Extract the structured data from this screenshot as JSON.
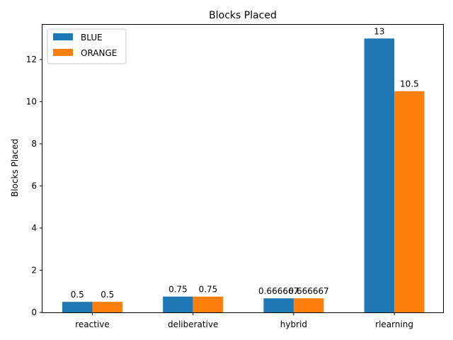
{
  "chart_data": {
    "type": "bar",
    "title": "Blocks Placed",
    "xlabel": "",
    "ylabel": "Blocks Placed",
    "categories": [
      "reactive",
      "deliberative",
      "hybrid",
      "rlearning"
    ],
    "series": [
      {
        "name": "BLUE",
        "color": "#1f77b4",
        "values": [
          0.5,
          0.75,
          0.666667,
          13
        ],
        "labels": [
          "0.5",
          "0.75",
          "0.666667",
          "13"
        ]
      },
      {
        "name": "ORANGE",
        "color": "#ff7f0e",
        "values": [
          0.5,
          0.75,
          0.666667,
          10.5
        ],
        "labels": [
          "0.5",
          "0.75",
          "0.666667",
          "10.5"
        ]
      }
    ],
    "ylim": [
      0,
      13.65
    ],
    "yticks": [
      0,
      2,
      4,
      6,
      8,
      10,
      12
    ],
    "ytick_labels": [
      "0",
      "2",
      "4",
      "6",
      "8",
      "10",
      "12"
    ],
    "grid": false,
    "legend_position": "top-left"
  }
}
